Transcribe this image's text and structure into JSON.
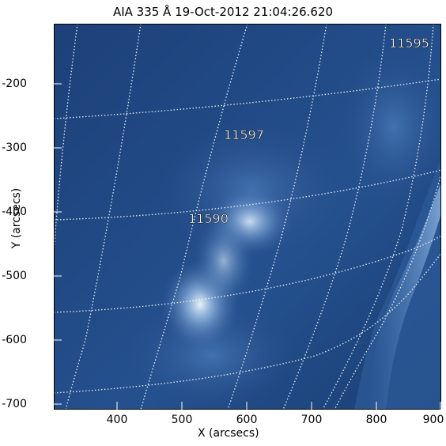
{
  "title": "AIA 335 Å 19-Oct-2012 21:04:26.620",
  "xlabel": "X (arcsecs)",
  "ylabel": "Y (arcsecs)",
  "x_ticks": [
    "400",
    "500",
    "600",
    "700",
    "800",
    "900"
  ],
  "y_ticks": [
    "-200",
    "-300",
    "-400",
    "-500",
    "-600",
    "-700"
  ],
  "regions": [
    {
      "id": "ar-11595",
      "label": "11595"
    },
    {
      "id": "ar-11597",
      "label": "11597"
    },
    {
      "id": "ar-11590",
      "label": "11590"
    }
  ],
  "colors": {
    "background": "#1a3c72",
    "bright": "#d8ecff",
    "grid": "#ffffff"
  }
}
